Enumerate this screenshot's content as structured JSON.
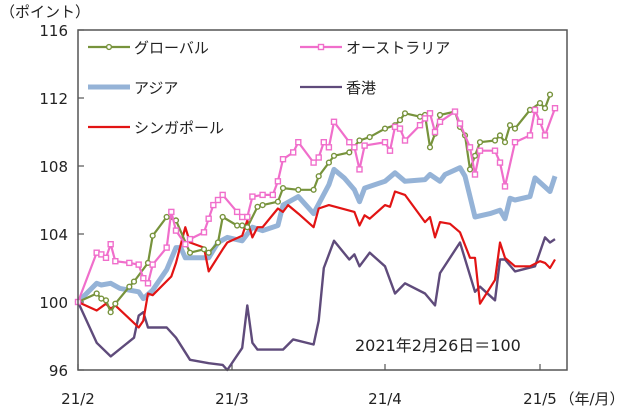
{
  "chart_data": {
    "type": "line",
    "ylabel": "（ポイント）",
    "xunit": "（年/月）",
    "annotation": "2021年2月26日＝100",
    "ylim": [
      96,
      116
    ],
    "yticks": [
      "96",
      "100",
      "104",
      "108",
      "112",
      "116"
    ],
    "xticks": [
      "21/2",
      "21/3",
      "21/4",
      "21/5"
    ],
    "grid": false,
    "legend_position": "top-left, inside, two columns",
    "series": [
      {
        "name": "グローバル",
        "color": "#77933c",
        "marker": "circle",
        "points": [
          [
            "2021-02-26",
            100
          ],
          [
            "2021-03-02",
            100.5
          ],
          [
            "2021-03-03",
            100.2
          ],
          [
            "2021-03-04",
            100.1
          ],
          [
            "2021-03-05",
            99.4
          ],
          [
            "2021-03-06",
            99.9
          ],
          [
            "2021-03-09",
            100.9
          ],
          [
            "2021-03-10",
            101.2
          ],
          [
            "2021-03-13",
            102.3
          ],
          [
            "2021-03-14",
            103.9
          ],
          [
            "2021-03-17",
            105.0
          ],
          [
            "2021-03-19",
            104.8
          ],
          [
            "2021-03-22",
            102.9
          ],
          [
            "2021-03-25",
            103.1
          ],
          [
            "2021-03-26",
            102.9
          ],
          [
            "2021-03-28",
            103.5
          ],
          [
            "2021-03-29",
            105.0
          ],
          [
            "2021-04-01",
            104.5
          ],
          [
            "2021-04-02",
            104.5
          ],
          [
            "2021-04-03",
            104.4
          ],
          [
            "2021-04-05",
            105.6
          ],
          [
            "2021-04-06",
            105.7
          ],
          [
            "2021-04-09",
            105.9
          ],
          [
            "2021-04-10",
            106.7
          ],
          [
            "2021-04-13",
            106.6
          ],
          [
            "2021-04-16",
            106.6
          ],
          [
            "2021-04-17",
            107.4
          ],
          [
            "2021-04-19",
            108.2
          ],
          [
            "2021-04-20",
            108.6
          ],
          [
            "2021-04-23",
            108.8
          ],
          [
            "2021-04-25",
            109.5
          ],
          [
            "2021-04-27",
            109.7
          ],
          [
            "2021-04-30",
            110.2
          ],
          [
            "2021-05-02",
            110.4
          ],
          [
            "2021-05-03",
            110.7
          ],
          [
            "2021-05-04",
            111.1
          ],
          [
            "2021-05-07",
            110.9
          ],
          [
            "2021-05-08",
            111.0
          ],
          [
            "2021-05-09",
            109.1
          ],
          [
            "2021-05-10",
            109.9
          ],
          [
            "2021-05-11",
            111.0
          ],
          [
            "2021-05-14",
            111.2
          ],
          [
            "2021-05-15",
            110.3
          ],
          [
            "2021-05-16",
            109.8
          ],
          [
            "2021-05-17",
            107.8
          ],
          [
            "2021-05-18",
            108.6
          ],
          [
            "2021-05-19",
            109.4
          ],
          [
            "2021-05-22",
            109.5
          ],
          [
            "2021-05-23",
            109.8
          ],
          [
            "2021-05-24",
            109.4
          ],
          [
            "2021-05-25",
            110.4
          ],
          [
            "2021-05-26",
            110.2
          ],
          [
            "2021-05-29",
            111.3
          ],
          [
            "2021-05-31",
            111.7
          ],
          [
            "2021-06-01",
            111.4
          ],
          [
            "2021-06-02",
            112.2
          ]
        ]
      },
      {
        "name": "オーストラリア",
        "color": "#f06ecb",
        "marker": "square",
        "points": [
          [
            "2021-02-26",
            100
          ],
          [
            "2021-03-02",
            102.9
          ],
          [
            "2021-03-03",
            102.8
          ],
          [
            "2021-03-04",
            102.6
          ],
          [
            "2021-03-05",
            103.4
          ],
          [
            "2021-03-06",
            102.4
          ],
          [
            "2021-03-09",
            102.3
          ],
          [
            "2021-03-11",
            102.2
          ],
          [
            "2021-03-12",
            101.4
          ],
          [
            "2021-03-13",
            101.1
          ],
          [
            "2021-03-14",
            102.2
          ],
          [
            "2021-03-17",
            103.2
          ],
          [
            "2021-03-18",
            105.3
          ],
          [
            "2021-03-19",
            104.2
          ],
          [
            "2021-03-21",
            103.4
          ],
          [
            "2021-03-22",
            103.7
          ],
          [
            "2021-03-25",
            104.1
          ],
          [
            "2021-03-26",
            104.9
          ],
          [
            "2021-03-27",
            105.7
          ],
          [
            "2021-03-28",
            106.0
          ],
          [
            "2021-03-29",
            106.3
          ],
          [
            "2021-04-01",
            105.3
          ],
          [
            "2021-04-02",
            105.0
          ],
          [
            "2021-04-03",
            105.0
          ],
          [
            "2021-04-04",
            106.2
          ],
          [
            "2021-04-06",
            106.3
          ],
          [
            "2021-04-08",
            106.3
          ],
          [
            "2021-04-09",
            107.1
          ],
          [
            "2021-04-10",
            108.4
          ],
          [
            "2021-04-12",
            108.8
          ],
          [
            "2021-04-13",
            109.4
          ],
          [
            "2021-04-16",
            108.2
          ],
          [
            "2021-04-17",
            108.5
          ],
          [
            "2021-04-18",
            109.4
          ],
          [
            "2021-04-19",
            109.1
          ],
          [
            "2021-04-20",
            110.6
          ],
          [
            "2021-04-23",
            109.4
          ],
          [
            "2021-04-24",
            109.1
          ],
          [
            "2021-04-25",
            107.8
          ],
          [
            "2021-04-26",
            109.2
          ],
          [
            "2021-04-30",
            109.4
          ],
          [
            "2021-05-01",
            108.9
          ],
          [
            "2021-05-02",
            110.3
          ],
          [
            "2021-05-03",
            110.2
          ],
          [
            "2021-05-04",
            109.5
          ],
          [
            "2021-05-07",
            110.4
          ],
          [
            "2021-05-08",
            110.8
          ],
          [
            "2021-05-09",
            111.1
          ],
          [
            "2021-05-10",
            110.0
          ],
          [
            "2021-05-11",
            110.6
          ],
          [
            "2021-05-14",
            111.2
          ],
          [
            "2021-05-15",
            110.5
          ],
          [
            "2021-05-17",
            109.1
          ],
          [
            "2021-05-18",
            107.5
          ],
          [
            "2021-05-19",
            108.9
          ],
          [
            "2021-05-22",
            108.9
          ],
          [
            "2021-05-23",
            108.2
          ],
          [
            "2021-05-24",
            106.8
          ],
          [
            "2021-05-26",
            109.4
          ],
          [
            "2021-05-29",
            109.8
          ],
          [
            "2021-05-30",
            111.3
          ],
          [
            "2021-05-31",
            110.6
          ],
          [
            "2021-06-01",
            109.8
          ],
          [
            "2021-06-03",
            111.4
          ]
        ]
      },
      {
        "name": "アジア",
        "color": "#95b3d7",
        "marker": "none",
        "points": [
          [
            "2021-02-26",
            100
          ],
          [
            "2021-03-02",
            101.1
          ],
          [
            "2021-03-03",
            101.0
          ],
          [
            "2021-03-05",
            101.1
          ],
          [
            "2021-03-07",
            100.8
          ],
          [
            "2021-03-11",
            100.6
          ],
          [
            "2021-03-12",
            100.2
          ],
          [
            "2021-03-14",
            100.7
          ],
          [
            "2021-03-17",
            101.9
          ],
          [
            "2021-03-19",
            103.2
          ],
          [
            "2021-03-20",
            103.2
          ],
          [
            "2021-03-21",
            102.6
          ],
          [
            "2021-03-25",
            102.6
          ],
          [
            "2021-03-26",
            102.6
          ],
          [
            "2021-03-28",
            103.5
          ],
          [
            "2021-03-30",
            103.8
          ],
          [
            "2021-04-02",
            103.6
          ],
          [
            "2021-04-04",
            104.4
          ],
          [
            "2021-04-06",
            104.2
          ],
          [
            "2021-04-09",
            104.5
          ],
          [
            "2021-04-10",
            105.7
          ],
          [
            "2021-04-13",
            106.2
          ],
          [
            "2021-04-16",
            105.2
          ],
          [
            "2021-04-19",
            106.9
          ],
          [
            "2021-04-20",
            107.8
          ],
          [
            "2021-04-22",
            107.3
          ],
          [
            "2021-04-24",
            106.6
          ],
          [
            "2021-04-25",
            105.9
          ],
          [
            "2021-04-26",
            106.7
          ],
          [
            "2021-04-30",
            107.1
          ],
          [
            "2021-05-02",
            107.6
          ],
          [
            "2021-05-04",
            107.1
          ],
          [
            "2021-05-08",
            107.2
          ],
          [
            "2021-05-09",
            107.5
          ],
          [
            "2021-05-11",
            107.1
          ],
          [
            "2021-05-12",
            107.5
          ],
          [
            "2021-05-15",
            107.9
          ],
          [
            "2021-05-16",
            107.4
          ],
          [
            "2021-05-18",
            105.0
          ],
          [
            "2021-05-21",
            105.2
          ],
          [
            "2021-05-23",
            105.4
          ],
          [
            "2021-05-24",
            104.9
          ],
          [
            "2021-05-25",
            106.1
          ],
          [
            "2021-05-26",
            106.0
          ],
          [
            "2021-05-29",
            106.2
          ],
          [
            "2021-05-30",
            107.3
          ],
          [
            "2021-06-02",
            106.5
          ],
          [
            "2021-06-03",
            107.4
          ]
        ]
      },
      {
        "name": "香港",
        "color": "#5f4b7b",
        "marker": "none",
        "points": [
          [
            "2021-02-26",
            100
          ],
          [
            "2021-03-02",
            97.6
          ],
          [
            "2021-03-05",
            96.8
          ],
          [
            "2021-03-10",
            97.9
          ],
          [
            "2021-03-11",
            99.2
          ],
          [
            "2021-03-12",
            99.4
          ],
          [
            "2021-03-13",
            98.5
          ],
          [
            "2021-03-17",
            98.5
          ],
          [
            "2021-03-19",
            97.9
          ],
          [
            "2021-03-22",
            96.6
          ],
          [
            "2021-03-26",
            96.4
          ],
          [
            "2021-03-29",
            96.3
          ],
          [
            "2021-03-30",
            96.0
          ],
          [
            "2021-04-02",
            97.3
          ],
          [
            "2021-04-03",
            99.8
          ],
          [
            "2021-04-04",
            97.6
          ],
          [
            "2021-04-05",
            97.2
          ],
          [
            "2021-04-10",
            97.2
          ],
          [
            "2021-04-12",
            97.8
          ],
          [
            "2021-04-16",
            97.5
          ],
          [
            "2021-04-17",
            98.9
          ],
          [
            "2021-04-18",
            102.0
          ],
          [
            "2021-04-20",
            103.6
          ],
          [
            "2021-04-23",
            102.5
          ],
          [
            "2021-04-24",
            102.8
          ],
          [
            "2021-04-25",
            102.1
          ],
          [
            "2021-04-27",
            102.9
          ],
          [
            "2021-04-30",
            102.1
          ],
          [
            "2021-05-02",
            100.5
          ],
          [
            "2021-05-04",
            101.1
          ],
          [
            "2021-05-08",
            100.5
          ],
          [
            "2021-05-10",
            99.8
          ],
          [
            "2021-05-11",
            101.7
          ],
          [
            "2021-05-15",
            103.5
          ],
          [
            "2021-05-18",
            100.6
          ],
          [
            "2021-05-19",
            100.9
          ],
          [
            "2021-05-22",
            100.1
          ],
          [
            "2021-05-23",
            102.5
          ],
          [
            "2021-05-24",
            102.5
          ],
          [
            "2021-05-26",
            101.8
          ],
          [
            "2021-05-30",
            102.1
          ],
          [
            "2021-06-01",
            103.8
          ],
          [
            "2021-06-02",
            103.5
          ],
          [
            "2021-06-03",
            103.7
          ]
        ]
      },
      {
        "name": "シンガポール",
        "color": "#e21414",
        "marker": "none",
        "points": [
          [
            "2021-02-26",
            100
          ],
          [
            "2021-03-02",
            99.5
          ],
          [
            "2021-03-04",
            99.9
          ],
          [
            "2021-03-05",
            99.6
          ],
          [
            "2021-03-06",
            99.8
          ],
          [
            "2021-03-11",
            98.5
          ],
          [
            "2021-03-12",
            98.9
          ],
          [
            "2021-03-13",
            100.5
          ],
          [
            "2021-03-14",
            100.4
          ],
          [
            "2021-03-18",
            101.5
          ],
          [
            "2021-03-19",
            102.3
          ],
          [
            "2021-03-21",
            104.4
          ],
          [
            "2021-03-22",
            103.5
          ],
          [
            "2021-03-25",
            103.2
          ],
          [
            "2021-03-26",
            101.8
          ],
          [
            "2021-03-29",
            103.1
          ],
          [
            "2021-03-30",
            103.5
          ],
          [
            "2021-04-02",
            103.9
          ],
          [
            "2021-04-03",
            104.8
          ],
          [
            "2021-04-04",
            103.8
          ],
          [
            "2021-04-05",
            104.4
          ],
          [
            "2021-04-06",
            104.4
          ],
          [
            "2021-04-09",
            105.5
          ],
          [
            "2021-04-10",
            105.3
          ],
          [
            "2021-04-11",
            105.7
          ],
          [
            "2021-04-13",
            105.2
          ],
          [
            "2021-04-16",
            104.4
          ],
          [
            "2021-04-17",
            105.5
          ],
          [
            "2021-04-19",
            105.7
          ],
          [
            "2021-04-24",
            105.3
          ],
          [
            "2021-04-25",
            104.5
          ],
          [
            "2021-04-26",
            105.1
          ],
          [
            "2021-04-27",
            104.9
          ],
          [
            "2021-04-30",
            105.7
          ],
          [
            "2021-05-01",
            105.6
          ],
          [
            "2021-05-02",
            106.5
          ],
          [
            "2021-05-04",
            106.3
          ],
          [
            "2021-05-08",
            104.7
          ],
          [
            "2021-05-09",
            105.0
          ],
          [
            "2021-05-10",
            103.8
          ],
          [
            "2021-05-11",
            104.7
          ],
          [
            "2021-05-13",
            104.6
          ],
          [
            "2021-05-15",
            104.1
          ],
          [
            "2021-05-17",
            102.6
          ],
          [
            "2021-05-18",
            102.6
          ],
          [
            "2021-05-19",
            99.9
          ],
          [
            "2021-05-22",
            101.3
          ],
          [
            "2021-05-23",
            103.5
          ],
          [
            "2021-05-24",
            102.6
          ],
          [
            "2021-05-26",
            102.1
          ],
          [
            "2021-05-29",
            102.1
          ],
          [
            "2021-05-31",
            102.4
          ],
          [
            "2021-06-01",
            102.3
          ],
          [
            "2021-06-02",
            102.0
          ],
          [
            "2021-06-03",
            102.5
          ]
        ]
      }
    ]
  }
}
